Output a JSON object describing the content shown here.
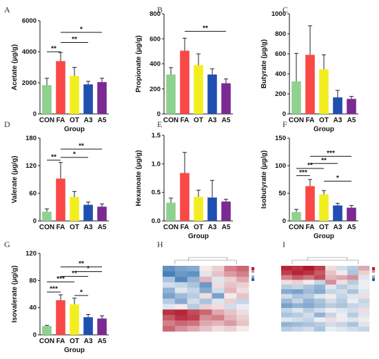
{
  "chart_data": [
    {
      "type": "bar",
      "panel": "A",
      "xlabel": "Group",
      "ylabel": "Acetate (μg/g)",
      "categories": [
        "CON",
        "FA",
        "OT",
        "A3",
        "A5"
      ],
      "values": [
        1850,
        3400,
        2450,
        1900,
        2050
      ],
      "errors": [
        450,
        550,
        550,
        200,
        250
      ],
      "ylim": [
        0,
        6000
      ],
      "yticks": [
        "0",
        "2000",
        "4000",
        "6000"
      ],
      "significance": [
        {
          "from": 0,
          "to": 1,
          "y": 4000,
          "label": "**"
        },
        {
          "from": 1,
          "to": 3,
          "y": 4600,
          "label": "**"
        },
        {
          "from": 1,
          "to": 4,
          "y": 5250,
          "label": "*"
        }
      ]
    },
    {
      "type": "bar",
      "panel": "B",
      "xlabel": "",
      "ylabel": "Propionate (μg/g)",
      "categories": [
        "CON",
        "FA",
        "OT",
        "A3",
        "A5"
      ],
      "values": [
        315,
        505,
        390,
        315,
        245
      ],
      "errors": [
        55,
        100,
        90,
        45,
        35
      ],
      "ylim": [
        0,
        800
      ],
      "yticks": [
        "0",
        "200",
        "400",
        "600",
        "800"
      ],
      "significance": [
        {
          "from": 1,
          "to": 4,
          "y": 660,
          "label": "**"
        }
      ]
    },
    {
      "type": "bar",
      "panel": "C",
      "xlabel": "Group",
      "ylabel": "Butyrate (μg/g)",
      "categories": [
        "CON",
        "FA",
        "OT",
        "A3",
        "A5"
      ],
      "values": [
        325,
        590,
        445,
        165,
        150
      ],
      "errors": [
        280,
        290,
        145,
        70,
        25
      ],
      "ylim": [
        0,
        1000
      ],
      "yticks": [
        "0",
        "200",
        "400",
        "600",
        "800",
        "1000"
      ],
      "significance": []
    },
    {
      "type": "bar",
      "panel": "D",
      "xlabel": "",
      "ylabel": "Valerate (μg/g)",
      "categories": [
        "CON",
        "FA",
        "OT",
        "A3",
        "A5"
      ],
      "values": [
        20,
        92,
        52,
        35,
        31
      ],
      "errors": [
        6,
        35,
        12,
        6,
        6
      ],
      "ylim": [
        0,
        180
      ],
      "yticks": [
        "0",
        "60",
        "120",
        "180"
      ],
      "significance": [
        {
          "from": 0,
          "to": 1,
          "y": 132,
          "label": "**"
        },
        {
          "from": 1,
          "to": 3,
          "y": 138,
          "label": "*"
        },
        {
          "from": 1,
          "to": 4,
          "y": 156,
          "label": "**"
        }
      ]
    },
    {
      "type": "bar",
      "panel": "E",
      "xlabel": "Group",
      "ylabel": "Hexanoate (μg/g)",
      "categories": [
        "CON",
        "FA",
        "OT",
        "A3",
        "A5"
      ],
      "values": [
        0.32,
        0.84,
        0.42,
        0.41,
        0.34
      ],
      "errors": [
        0.08,
        0.36,
        0.12,
        0.3,
        0.04
      ],
      "ylim": [
        0,
        1.5
      ],
      "yticks": [
        "0.0",
        "0.5",
        "1.0",
        "1.5"
      ],
      "significance": []
    },
    {
      "type": "bar",
      "panel": "F",
      "xlabel": "Group",
      "ylabel": "Isobutyrate (μg/g)",
      "categories": [
        "CON",
        "FA",
        "OT",
        "A3",
        "A5"
      ],
      "values": [
        16,
        63,
        48,
        28,
        24
      ],
      "errors": [
        5,
        12,
        7,
        4,
        4
      ],
      "ylim": [
        0,
        150
      ],
      "yticks": [
        "0",
        "50",
        "100",
        "150"
      ],
      "significance": [
        {
          "from": 0,
          "to": 1,
          "y": 82,
          "label": "***"
        },
        {
          "from": 0,
          "to": 2,
          "y": 95,
          "label": "**"
        },
        {
          "from": 1,
          "to": 3,
          "y": 104,
          "label": "**"
        },
        {
          "from": 1,
          "to": 4,
          "y": 117,
          "label": "***"
        },
        {
          "from": 2,
          "to": 4,
          "y": 72,
          "label": "*"
        }
      ]
    },
    {
      "type": "bar",
      "panel": "G",
      "xlabel": "Group",
      "ylabel": "Isovalerate (μg/g)",
      "categories": [
        "CON",
        "FA",
        "OT",
        "A3",
        "A5"
      ],
      "values": [
        13,
        51,
        45,
        26,
        24
      ],
      "errors": [
        1,
        8,
        9,
        4,
        4
      ],
      "ylim": [
        0,
        120
      ],
      "yticks": [
        "0",
        "40",
        "80",
        "120"
      ],
      "significance": [
        {
          "from": 0,
          "to": 1,
          "y": 63,
          "label": "***"
        },
        {
          "from": 0,
          "to": 2,
          "y": 78,
          "label": "***"
        },
        {
          "from": 1,
          "to": 3,
          "y": 86,
          "label": "**"
        },
        {
          "from": 1,
          "to": 4,
          "y": 100,
          "label": "**"
        },
        {
          "from": 2,
          "to": 3,
          "y": 58,
          "label": "*"
        },
        {
          "from": 2,
          "to": 4,
          "y": 93,
          "label": "*"
        }
      ]
    },
    {
      "type": "heatmap",
      "panel": "H",
      "values": [
        [
          -1.2,
          -1.0,
          -0.9,
          0.1,
          0.3,
          0.9,
          1.1
        ],
        [
          -1.4,
          -1.1,
          -1.2,
          -0.2,
          0.4,
          0.7,
          0.9
        ],
        [
          -0.6,
          -1.3,
          -0.8,
          0.5,
          -0.2,
          0.3,
          0.6
        ],
        [
          -0.3,
          -0.4,
          -0.6,
          -1.1,
          0.2,
          0.4,
          0.3
        ],
        [
          -0.8,
          -0.2,
          -0.4,
          -0.9,
          -0.3,
          0.5,
          0.2
        ],
        [
          -1.0,
          -0.7,
          -0.5,
          0.2,
          -1.0,
          0.1,
          0.4
        ],
        [
          -0.5,
          -0.9,
          -0.3,
          -0.6,
          -0.2,
          0.3,
          -0.4
        ],
        [
          -0.2,
          0.1,
          -0.5,
          0.3,
          0.2,
          -0.3,
          -0.1
        ],
        [
          1.5,
          1.6,
          1.3,
          1.1,
          0.6,
          0.4,
          0.2
        ],
        [
          1.2,
          1.5,
          1.4,
          0.8,
          0.9,
          0.5,
          0.3
        ],
        [
          0.9,
          1.1,
          1.0,
          0.6,
          0.5,
          0.7,
          0.4
        ],
        [
          1.1,
          0.8,
          0.6,
          0.4,
          0.2,
          0.3,
          0.1
        ]
      ]
    },
    {
      "type": "heatmap",
      "panel": "I",
      "values": [
        [
          1.6,
          1.5,
          1.7,
          1.4,
          0.2,
          -0.3,
          -0.5,
          0.6
        ],
        [
          1.4,
          1.6,
          1.5,
          1.2,
          0.4,
          0.1,
          -0.6,
          0.3
        ],
        [
          0.9,
          1.2,
          1.0,
          1.3,
          0.5,
          0.6,
          0.8,
          -0.2
        ],
        [
          0.2,
          0.3,
          0.1,
          -0.4,
          0.8,
          0.2,
          -0.5,
          0.1
        ],
        [
          -0.5,
          -0.4,
          -0.6,
          -0.8,
          -0.2,
          -0.5,
          -0.3,
          -0.1
        ],
        [
          -0.9,
          -1.0,
          -0.7,
          -0.9,
          -0.4,
          -0.3,
          -0.6,
          -0.2
        ],
        [
          -0.3,
          -0.6,
          -0.5,
          -0.2,
          0.1,
          -0.4,
          -0.2,
          0.2
        ],
        [
          -0.7,
          -0.4,
          -0.8,
          -0.6,
          -0.3,
          -0.5,
          -0.1,
          -0.4
        ],
        [
          -1.0,
          -0.8,
          -0.9,
          -0.7,
          -0.5,
          -0.6,
          -0.4,
          -0.3
        ],
        [
          -0.4,
          -0.2,
          -0.5,
          -0.3,
          0.1,
          -0.2,
          -0.3,
          0.2
        ],
        [
          -0.6,
          -0.5,
          -0.3,
          -0.8,
          -0.4,
          -0.1,
          -0.5,
          -0.2
        ],
        [
          -0.2,
          -0.3,
          -0.4,
          -0.1,
          0.2,
          0.1,
          -0.2,
          0.1
        ],
        [
          -0.8,
          -0.7,
          -0.6,
          -0.5,
          -0.3,
          -0.4,
          -0.6,
          -0.2
        ],
        [
          -0.5,
          -0.4,
          -0.3,
          -0.6,
          -0.1,
          -0.2,
          -0.3,
          -0.4
        ]
      ]
    }
  ],
  "colors": {
    "bars": [
      "#8fd18e",
      "#f94846",
      "#f3ee1f",
      "#1f4fb0",
      "#7b2a93"
    ],
    "heat_low": "#2166ac",
    "heat_mid": "#f7f7f7",
    "heat_high": "#b2182b"
  }
}
